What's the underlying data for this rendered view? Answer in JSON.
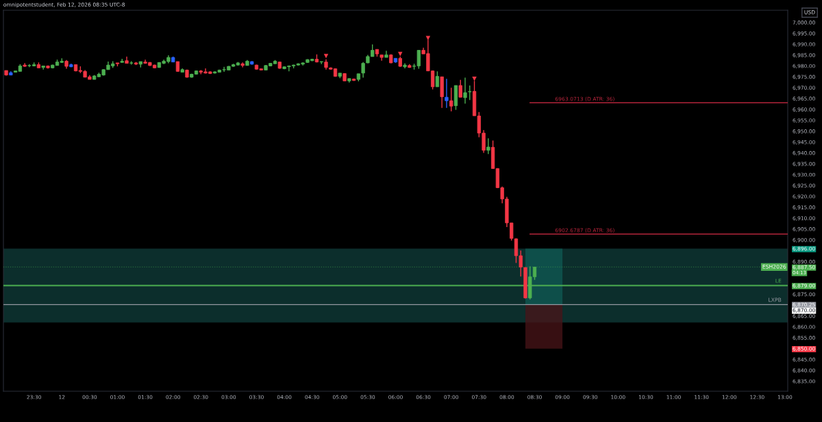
{
  "chart_data": {
    "type": "candlestick",
    "x": [
      "2026-02-11T23:00",
      "2026-02-11T23:05",
      "2026-02-11T23:10",
      "2026-02-11T23:15",
      "2026-02-11T23:20",
      "2026-02-11T23:25",
      "2026-02-11T23:30",
      "2026-02-11T23:35",
      "2026-02-11T23:40",
      "2026-02-11T23:45",
      "2026-02-11T23:50",
      "2026-02-11T23:55",
      "2026-02-12T00:00",
      "2026-02-12T00:05",
      "2026-02-12T00:10",
      "2026-02-12T00:15",
      "2026-02-12T00:20",
      "2026-02-12T00:25",
      "2026-02-12T00:30",
      "2026-02-12T00:35",
      "2026-02-12T00:40",
      "2026-02-12T00:45",
      "2026-02-12T00:50",
      "2026-02-12T00:55",
      "2026-02-12T01:00",
      "2026-02-12T01:05",
      "2026-02-12T01:10",
      "2026-02-12T01:15",
      "2026-02-12T01:20",
      "2026-02-12T01:25",
      "2026-02-12T01:30",
      "2026-02-12T01:35",
      "2026-02-12T01:40",
      "2026-02-12T01:45",
      "2026-02-12T01:50",
      "2026-02-12T01:55",
      "2026-02-12T02:00",
      "2026-02-12T02:05",
      "2026-02-12T02:10",
      "2026-02-12T02:15",
      "2026-02-12T02:20",
      "2026-02-12T02:25",
      "2026-02-12T02:30",
      "2026-02-12T02:35",
      "2026-02-12T02:40",
      "2026-02-12T02:45",
      "2026-02-12T02:50",
      "2026-02-12T02:55",
      "2026-02-12T03:00",
      "2026-02-12T03:05",
      "2026-02-12T03:10",
      "2026-02-12T03:15",
      "2026-02-12T03:20",
      "2026-02-12T03:25",
      "2026-02-12T03:30",
      "2026-02-12T03:35",
      "2026-02-12T03:40",
      "2026-02-12T03:45",
      "2026-02-12T03:50",
      "2026-02-12T03:55",
      "2026-02-12T04:00",
      "2026-02-12T04:05",
      "2026-02-12T04:10",
      "2026-02-12T04:15",
      "2026-02-12T04:20",
      "2026-02-12T04:25",
      "2026-02-12T04:30",
      "2026-02-12T04:35",
      "2026-02-12T04:40",
      "2026-02-12T04:45",
      "2026-02-12T04:50",
      "2026-02-12T04:55",
      "2026-02-12T05:00",
      "2026-02-12T05:05",
      "2026-02-12T05:10",
      "2026-02-12T05:15",
      "2026-02-12T05:20",
      "2026-02-12T05:25",
      "2026-02-12T05:30",
      "2026-02-12T05:35",
      "2026-02-12T05:40",
      "2026-02-12T05:45",
      "2026-02-12T05:50",
      "2026-02-12T05:55",
      "2026-02-12T06:00",
      "2026-02-12T06:05",
      "2026-02-12T06:10",
      "2026-02-12T06:15",
      "2026-02-12T06:20",
      "2026-02-12T06:25",
      "2026-02-12T06:30",
      "2026-02-12T06:35",
      "2026-02-12T06:40",
      "2026-02-12T06:45",
      "2026-02-12T06:50",
      "2026-02-12T06:55",
      "2026-02-12T07:00",
      "2026-02-12T07:05",
      "2026-02-12T07:10",
      "2026-02-12T07:15",
      "2026-02-12T07:20",
      "2026-02-12T07:25",
      "2026-02-12T07:30",
      "2026-02-12T07:35",
      "2026-02-12T07:40",
      "2026-02-12T07:45",
      "2026-02-12T07:50",
      "2026-02-12T07:55",
      "2026-02-12T08:00",
      "2026-02-12T08:05",
      "2026-02-12T08:10",
      "2026-02-12T08:15",
      "2026-02-12T08:20",
      "2026-02-12T08:25",
      "2026-02-12T08:30"
    ],
    "ohlc": [
      [
        6977.9,
        6977.9,
        6975.6,
        6975.8
      ],
      [
        6976.9,
        6977.5,
        6975.8,
        6975.8
      ],
      [
        6977.1,
        6977.7,
        6977.1,
        6977.7
      ],
      [
        6977.5,
        6980.8,
        6977.5,
        6980.0
      ],
      [
        6980.4,
        6981.3,
        6979.6,
        6979.8
      ],
      [
        6980.1,
        6980.8,
        6979.4,
        6980.2
      ],
      [
        6980.0,
        6981.6,
        6979.8,
        6980.6
      ],
      [
        6980.6,
        6981.6,
        6979.1,
        6979.1
      ],
      [
        6979.3,
        6980.0,
        6978.3,
        6980.0
      ],
      [
        6980.0,
        6980.2,
        6978.8,
        6979.1
      ],
      [
        6979.1,
        6980.6,
        6978.9,
        6980.4
      ],
      [
        6980.2,
        6982.9,
        6980.2,
        6981.8
      ],
      [
        6981.6,
        6983.5,
        6981.4,
        6982.2
      ],
      [
        6982.2,
        6982.7,
        6978.7,
        6979.8
      ],
      [
        6980.6,
        6981.1,
        6979.4,
        6979.6
      ],
      [
        6980.6,
        6980.6,
        6977.5,
        6977.7
      ],
      [
        6977.9,
        6979.8,
        6976.7,
        6977.5
      ],
      [
        6977.5,
        6978.1,
        6974.8,
        6974.8
      ],
      [
        6975.0,
        6975.8,
        6973.8,
        6973.8
      ],
      [
        6973.8,
        6975.8,
        6973.8,
        6975.4
      ],
      [
        6975.0,
        6976.9,
        6975.0,
        6976.2
      ],
      [
        6975.8,
        6978.5,
        6975.6,
        6978.3
      ],
      [
        6978.3,
        6982.0,
        6978.3,
        6980.4
      ],
      [
        6980.0,
        6982.2,
        6979.1,
        6981.0
      ],
      [
        6981.4,
        6981.4,
        6979.8,
        6981.0
      ],
      [
        6981.6,
        6983.3,
        6981.6,
        6982.2
      ],
      [
        6982.4,
        6984.3,
        6981.2,
        6981.2
      ],
      [
        6981.3,
        6982.2,
        6980.6,
        6981.4
      ],
      [
        6981.4,
        6981.8,
        6980.4,
        6980.8
      ],
      [
        6980.8,
        6982.0,
        6979.3,
        6982.0
      ],
      [
        6981.8,
        6982.9,
        6981.0,
        6981.2
      ],
      [
        6981.6,
        6981.8,
        6980.0,
        6980.2
      ],
      [
        6980.4,
        6980.6,
        6979.0,
        6979.1
      ],
      [
        6979.3,
        6981.6,
        6979.1,
        6981.6
      ],
      [
        6981.2,
        6982.9,
        6980.8,
        6982.2
      ],
      [
        6982.0,
        6984.9,
        6981.2,
        6983.9
      ],
      [
        6983.9,
        6984.3,
        6981.8,
        6981.8
      ],
      [
        6982.0,
        6982.0,
        6977.3,
        6977.5
      ],
      [
        6977.1,
        6978.9,
        6977.1,
        6978.3
      ],
      [
        6978.1,
        6978.3,
        6974.6,
        6974.8
      ],
      [
        6974.8,
        6976.4,
        6974.6,
        6976.2
      ],
      [
        6976.2,
        6977.9,
        6976.0,
        6977.7
      ],
      [
        6977.7,
        6978.1,
        6976.2,
        6977.1
      ],
      [
        6977.3,
        6978.9,
        6976.5,
        6976.7
      ],
      [
        6977.3,
        6977.5,
        6976.3,
        6976.5
      ],
      [
        6976.7,
        6977.5,
        6976.5,
        6977.3
      ],
      [
        6977.1,
        6978.3,
        6977.0,
        6978.1
      ],
      [
        6978.2,
        6979.6,
        6977.3,
        6978.3
      ],
      [
        6978.1,
        6980.0,
        6978.1,
        6979.8
      ],
      [
        6979.8,
        6981.0,
        6979.6,
        6980.6
      ],
      [
        6980.4,
        6981.8,
        6980.2,
        6981.4
      ],
      [
        6981.0,
        6981.6,
        6979.3,
        6980.2
      ],
      [
        6980.2,
        6982.7,
        6980.2,
        6982.2
      ],
      [
        6982.0,
        6982.2,
        6980.6,
        6980.8
      ],
      [
        6980.4,
        6980.6,
        6978.3,
        6978.5
      ],
      [
        6978.7,
        6978.9,
        6977.9,
        6978.1
      ],
      [
        6978.1,
        6980.4,
        6978.1,
        6980.2
      ],
      [
        6980.0,
        6981.4,
        6979.8,
        6981.2
      ],
      [
        6981.0,
        6982.7,
        6981.0,
        6982.2
      ],
      [
        6981.8,
        6982.0,
        6978.7,
        6978.9
      ],
      [
        6978.7,
        6979.8,
        6978.5,
        6979.6
      ],
      [
        6979.6,
        6980.2,
        6977.5,
        6980.0
      ],
      [
        6980.0,
        6980.6,
        6978.9,
        6980.4
      ],
      [
        6980.4,
        6981.2,
        6980.2,
        6981.0
      ],
      [
        6980.8,
        6981.6,
        6980.2,
        6981.4
      ],
      [
        6981.6,
        6983.1,
        6981.4,
        6982.9
      ],
      [
        6982.4,
        6983.3,
        6982.2,
        6983.1
      ],
      [
        6983.1,
        6985.3,
        6981.6,
        6981.8
      ],
      [
        6981.8,
        6982.1,
        6980.8,
        6982.0
      ],
      [
        6981.8,
        6983.0,
        6978.3,
        6979.3
      ],
      [
        6979.1,
        6979.3,
        6978.3,
        6978.5
      ],
      [
        6978.7,
        6978.9,
        6975.0,
        6975.2
      ],
      [
        6975.2,
        6976.7,
        6974.4,
        6976.7
      ],
      [
        6976.5,
        6976.7,
        6973.1,
        6973.1
      ],
      [
        6973.1,
        6974.2,
        6972.3,
        6974.2
      ],
      [
        6974.0,
        6974.2,
        6973.1,
        6973.3
      ],
      [
        6973.8,
        6976.4,
        6972.9,
        6976.4
      ],
      [
        6976.7,
        6981.8,
        6974.6,
        6981.2
      ],
      [
        6981.4,
        6985.1,
        6981.2,
        6984.3
      ],
      [
        6984.3,
        6989.9,
        6984.3,
        6987.2
      ],
      [
        6987.6,
        6987.6,
        6984.3,
        6985.5
      ],
      [
        6985.1,
        6985.1,
        6982.4,
        6983.9
      ],
      [
        6983.9,
        6987.0,
        6983.9,
        6985.1
      ],
      [
        6985.1,
        6985.3,
        6981.2,
        6981.4
      ],
      [
        6983.5,
        6983.5,
        6981.4,
        6981.8
      ],
      [
        6983.5,
        6984.3,
        6979.6,
        6979.8
      ],
      [
        6979.6,
        6981.2,
        6978.9,
        6980.4
      ],
      [
        6980.2,
        6980.8,
        6979.1,
        6979.3
      ],
      [
        6979.8,
        6981.0,
        6978.3,
        6980.0
      ],
      [
        6980.0,
        6987.2,
        6978.7,
        6987.2
      ],
      [
        6987.2,
        6988.4,
        6985.5,
        6985.5
      ],
      [
        6985.7,
        6992.0,
        6977.7,
        6977.7
      ],
      [
        6977.7,
        6977.9,
        6969.2,
        6970.4
      ],
      [
        6970.4,
        6977.5,
        6970.4,
        6975.2
      ],
      [
        6975.0,
        6975.0,
        6960.7,
        6965.8
      ],
      [
        6965.6,
        6974.1,
        6960.7,
        6964.0
      ],
      [
        6964.0,
        6970.0,
        6959.1,
        6961.5
      ],
      [
        6961.7,
        6971.0,
        6959.8,
        6971.0
      ],
      [
        6971.0,
        6973.6,
        6965.6,
        6965.6
      ],
      [
        6965.4,
        6974.6,
        6962.7,
        6967.7
      ],
      [
        6968.1,
        6971.0,
        6964.3,
        6968.2
      ],
      [
        6968.3,
        6973.1,
        6957.1,
        6957.1
      ],
      [
        6957.0,
        6958.8,
        6947.2,
        6949.1
      ],
      [
        6949.1,
        6950.5,
        6940.0,
        6941.2
      ],
      [
        6941.2,
        6946.7,
        6939.5,
        6942.7
      ],
      [
        6942.6,
        6945.7,
        6932.8,
        6932.8
      ],
      [
        6932.8,
        6933.0,
        6923.8,
        6924.0
      ],
      [
        6924.0,
        6924.5,
        6916.8,
        6918.8
      ],
      [
        6918.8,
        6919.8,
        6905.9,
        6907.8
      ],
      [
        6907.8,
        6907.8,
        6899.7,
        6900.7
      ],
      [
        6900.5,
        6900.7,
        6889.4,
        6892.7
      ],
      [
        6892.7,
        6895.1,
        6883.2,
        6887.5
      ],
      [
        6887.3,
        6887.3,
        6873.0,
        6873.3
      ],
      [
        6873.3,
        6887.8,
        6872.6,
        6883.0
      ],
      [
        6883.0,
        6887.5,
        6881.6,
        6887.5
      ]
    ],
    "colors": [
      "#f23645",
      "#2962ff",
      "#4caf50",
      "#4caf50",
      "#f23645",
      "#4caf50",
      "#4caf50",
      "#f23645",
      "#4caf50",
      "#f23645",
      "#4caf50",
      "#4caf50",
      "#4caf50",
      "#f23645",
      "#2962ff",
      "#f23645",
      "#f23645",
      "#f23645",
      "#f23645",
      "#4caf50",
      "#4caf50",
      "#4caf50",
      "#4caf50",
      "#4caf50",
      "#f23645",
      "#4caf50",
      "#f23645",
      "#4caf50",
      "#f23645",
      "#4caf50",
      "#f23645",
      "#f23645",
      "#f23645",
      "#4caf50",
      "#4caf50",
      "#4caf50",
      "#2962ff",
      "#f23645",
      "#4caf50",
      "#f23645",
      "#4caf50",
      "#4caf50",
      "#f23645",
      "#f23645",
      "#f23645",
      "#4caf50",
      "#4caf50",
      "#4caf50",
      "#4caf50",
      "#4caf50",
      "#4caf50",
      "#f23645",
      "#4caf50",
      "#2962ff",
      "#f23645",
      "#f23645",
      "#4caf50",
      "#4caf50",
      "#4caf50",
      "#f23645",
      "#4caf50",
      "#4caf50",
      "#4caf50",
      "#4caf50",
      "#4caf50",
      "#4caf50",
      "#4caf50",
      "#f23645",
      "#4caf50",
      "#f23645",
      "#f23645",
      "#f23645",
      "#4caf50",
      "#f23645",
      "#4caf50",
      "#f23645",
      "#4caf50",
      "#4caf50",
      "#4caf50",
      "#4caf50",
      "#f23645",
      "#f23645",
      "#4caf50",
      "#f23645",
      "#2962ff",
      "#f23645",
      "#4caf50",
      "#f23645",
      "#4caf50",
      "#4caf50",
      "#f23645",
      "#f23645",
      "#f23645",
      "#4caf50",
      "#f23645",
      "#2962ff",
      "#f23645",
      "#4caf50",
      "#f23645",
      "#4caf50",
      "#4caf50",
      "#f23645",
      "#f23645",
      "#f23645",
      "#4caf50",
      "#f23645",
      "#f23645",
      "#f23645",
      "#f23645",
      "#f23645",
      "#f23645",
      "#f23645",
      "#f23645",
      "#4caf50",
      "#4caf50"
    ],
    "series": [
      {
        "type": "scatter",
        "marker": "triangle",
        "color": "#f23645",
        "x": [
          "2026-02-12T04:45",
          "2026-02-12T06:05",
          "2026-02-12T06:35",
          "2026-02-12T07:25"
        ],
        "values": [
          6984.5,
          6985.5,
          6992.8,
          6974.1
        ]
      },
      {
        "type": "line",
        "name": "6963.0713 (D ATR: 36)",
        "color": "#b2243a",
        "x": [
          "2026-02-12T08:25",
          "2026-02-12T13:03"
        ],
        "values": [
          6963.0713,
          6963.0713
        ]
      },
      {
        "type": "line",
        "name": "6902.6787 (D ATR: 36)",
        "color": "#b2243a",
        "x": [
          "2026-02-12T08:25",
          "2026-02-12T13:03"
        ],
        "values": [
          6902.6787,
          6902.6787
        ]
      },
      {
        "type": "bar",
        "color": "#0f5b54",
        "x": [
          "2026-02-12T08:40"
        ],
        "base": [
          6870
        ],
        "values": [
          26
        ]
      },
      {
        "type": "bar",
        "color": "#4a1418",
        "x": [
          "2026-02-12T08:40"
        ],
        "base": [
          6850
        ],
        "values": [
          20
        ]
      }
    ],
    "bands": [
      {
        "axis": "y",
        "from": 6862,
        "to": 6896,
        "color": "#0c2e2c"
      }
    ],
    "ref_lines": [
      {
        "axis": "y",
        "value": 6887.5,
        "label": "ESH2026",
        "color": "#4caf50",
        "line_style": "dotted"
      },
      {
        "axis": "y",
        "value": 6879,
        "label": "LE",
        "color": "#4caf50",
        "line_style": "solid"
      },
      {
        "axis": "y",
        "value": 6870.25,
        "label": "LXPB",
        "color": "#9598a1",
        "line_style": "solid"
      }
    ],
    "annotations": [
      "omnipotentstudent, Feb 12, 2026 08:35 UTC-8",
      "USD",
      "04:13",
      "6,870.00"
    ],
    "xlim": [
      "2026-02-11T22:57",
      "2026-02-12T13:03"
    ],
    "ylim": [
      6830.4,
      7005.6
    ],
    "xticks": [
      {
        "value": "2026-02-11T23:30",
        "label": "23:30"
      },
      {
        "value": "2026-02-12T00:00",
        "label": "12"
      },
      {
        "value": "2026-02-12T00:30",
        "label": "00:30"
      },
      {
        "value": "2026-02-12T01:00",
        "label": "01:00"
      },
      {
        "value": "2026-02-12T01:30",
        "label": "01:30"
      },
      {
        "value": "2026-02-12T02:00",
        "label": "02:00"
      },
      {
        "value": "2026-02-12T02:30",
        "label": "02:30"
      },
      {
        "value": "2026-02-12T03:00",
        "label": "03:00"
      },
      {
        "value": "2026-02-12T03:30",
        "label": "03:30"
      },
      {
        "value": "2026-02-12T04:00",
        "label": "04:00"
      },
      {
        "value": "2026-02-12T04:30",
        "label": "04:30"
      },
      {
        "value": "2026-02-12T05:00",
        "label": "05:00"
      },
      {
        "value": "2026-02-12T05:30",
        "label": "05:30"
      },
      {
        "value": "2026-02-12T06:00",
        "label": "06:00"
      },
      {
        "value": "2026-02-12T06:30",
        "label": "06:30"
      },
      {
        "value": "2026-02-12T07:00",
        "label": "07:00"
      },
      {
        "value": "2026-02-12T07:30",
        "label": "07:30"
      },
      {
        "value": "2026-02-12T08:00",
        "label": "08:00"
      },
      {
        "value": "2026-02-12T08:30",
        "label": "08:30"
      },
      {
        "value": "2026-02-12T09:00",
        "label": "09:00"
      },
      {
        "value": "2026-02-12T09:30",
        "label": "09:30"
      },
      {
        "value": "2026-02-12T10:00",
        "label": "10:00"
      },
      {
        "value": "2026-02-12T10:30",
        "label": "10:30"
      },
      {
        "value": "2026-02-12T11:00",
        "label": "11:00"
      },
      {
        "value": "2026-02-12T11:30",
        "label": "11:30"
      },
      {
        "value": "2026-02-12T12:00",
        "label": "12:00"
      },
      {
        "value": "2026-02-12T12:30",
        "label": "12:30"
      },
      {
        "value": "2026-02-12T13:00",
        "label": "13:00"
      }
    ],
    "yticks": [
      {
        "value": 6835,
        "label": "6,835.00"
      },
      {
        "value": 6840,
        "label": "6,840.00"
      },
      {
        "value": 6845,
        "label": "6,845.00"
      },
      {
        "value": 6850,
        "label": "6,850.00"
      },
      {
        "value": 6855,
        "label": "6,855.00"
      },
      {
        "value": 6860,
        "label": "6,860.00"
      },
      {
        "value": 6865,
        "label": "6,865.00"
      },
      {
        "value": 6870.25,
        "label": "6,870.25"
      },
      {
        "value": 6875,
        "label": "6,875.00"
      },
      {
        "value": 6879,
        "label": "6,879.00"
      },
      {
        "value": 6887.5,
        "label": "6,887.50"
      },
      {
        "value": 6890,
        "label": "6,890.00"
      },
      {
        "value": 6896,
        "label": "6,896.00"
      },
      {
        "value": 6900,
        "label": "6,900.00"
      },
      {
        "value": 6905,
        "label": "6,905.00"
      },
      {
        "value": 6910,
        "label": "6,910.00"
      },
      {
        "value": 6915,
        "label": "6,915.00"
      },
      {
        "value": 6920,
        "label": "6,920.00"
      },
      {
        "value": 6925,
        "label": "6,925.00"
      },
      {
        "value": 6930,
        "label": "6,930.00"
      },
      {
        "value": 6935,
        "label": "6,935.00"
      },
      {
        "value": 6940,
        "label": "6,940.00"
      },
      {
        "value": 6945,
        "label": "6,945.00"
      },
      {
        "value": 6950,
        "label": "6,950.00"
      },
      {
        "value": 6955,
        "label": "6,955.00"
      },
      {
        "value": 6960,
        "label": "6,960.00"
      },
      {
        "value": 6965,
        "label": "6,965.00"
      },
      {
        "value": 6970,
        "label": "6,970.00"
      },
      {
        "value": 6975,
        "label": "6,975.00"
      },
      {
        "value": 6980,
        "label": "6,980.00"
      },
      {
        "value": 6985,
        "label": "6,985.00"
      },
      {
        "value": 6990,
        "label": "6,990.00"
      },
      {
        "value": 6995,
        "label": "6,995.00"
      },
      {
        "value": 7000,
        "label": "7,000.00"
      }
    ],
    "grid": false,
    "legend": false
  }
}
